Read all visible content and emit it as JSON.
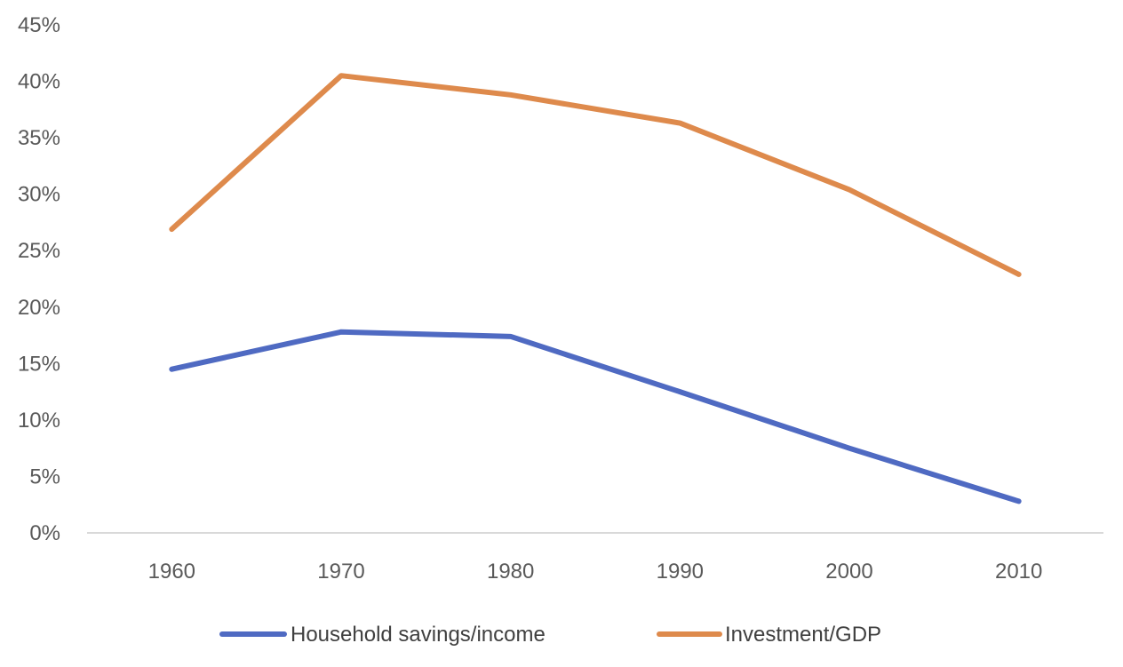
{
  "chart_data": {
    "type": "line",
    "title": "",
    "xlabel": "",
    "ylabel": "",
    "categories": [
      "1960",
      "1970",
      "1980",
      "1990",
      "2000",
      "2010"
    ],
    "ylim": [
      0,
      45
    ],
    "y_ticks": [
      "0%",
      "5%",
      "10%",
      "15%",
      "20%",
      "25%",
      "30%",
      "35%",
      "40%",
      "45%"
    ],
    "grid": false,
    "legend_position": "bottom",
    "series": [
      {
        "name": "Household savings/income",
        "color": "#4F6AC2",
        "values": [
          14.5,
          17.8,
          17.4,
          12.5,
          7.5,
          2.8
        ]
      },
      {
        "name": "Investment/GDP",
        "color": "#DE8A4C",
        "values": [
          26.9,
          40.5,
          38.8,
          36.3,
          30.4,
          22.9
        ]
      }
    ]
  }
}
